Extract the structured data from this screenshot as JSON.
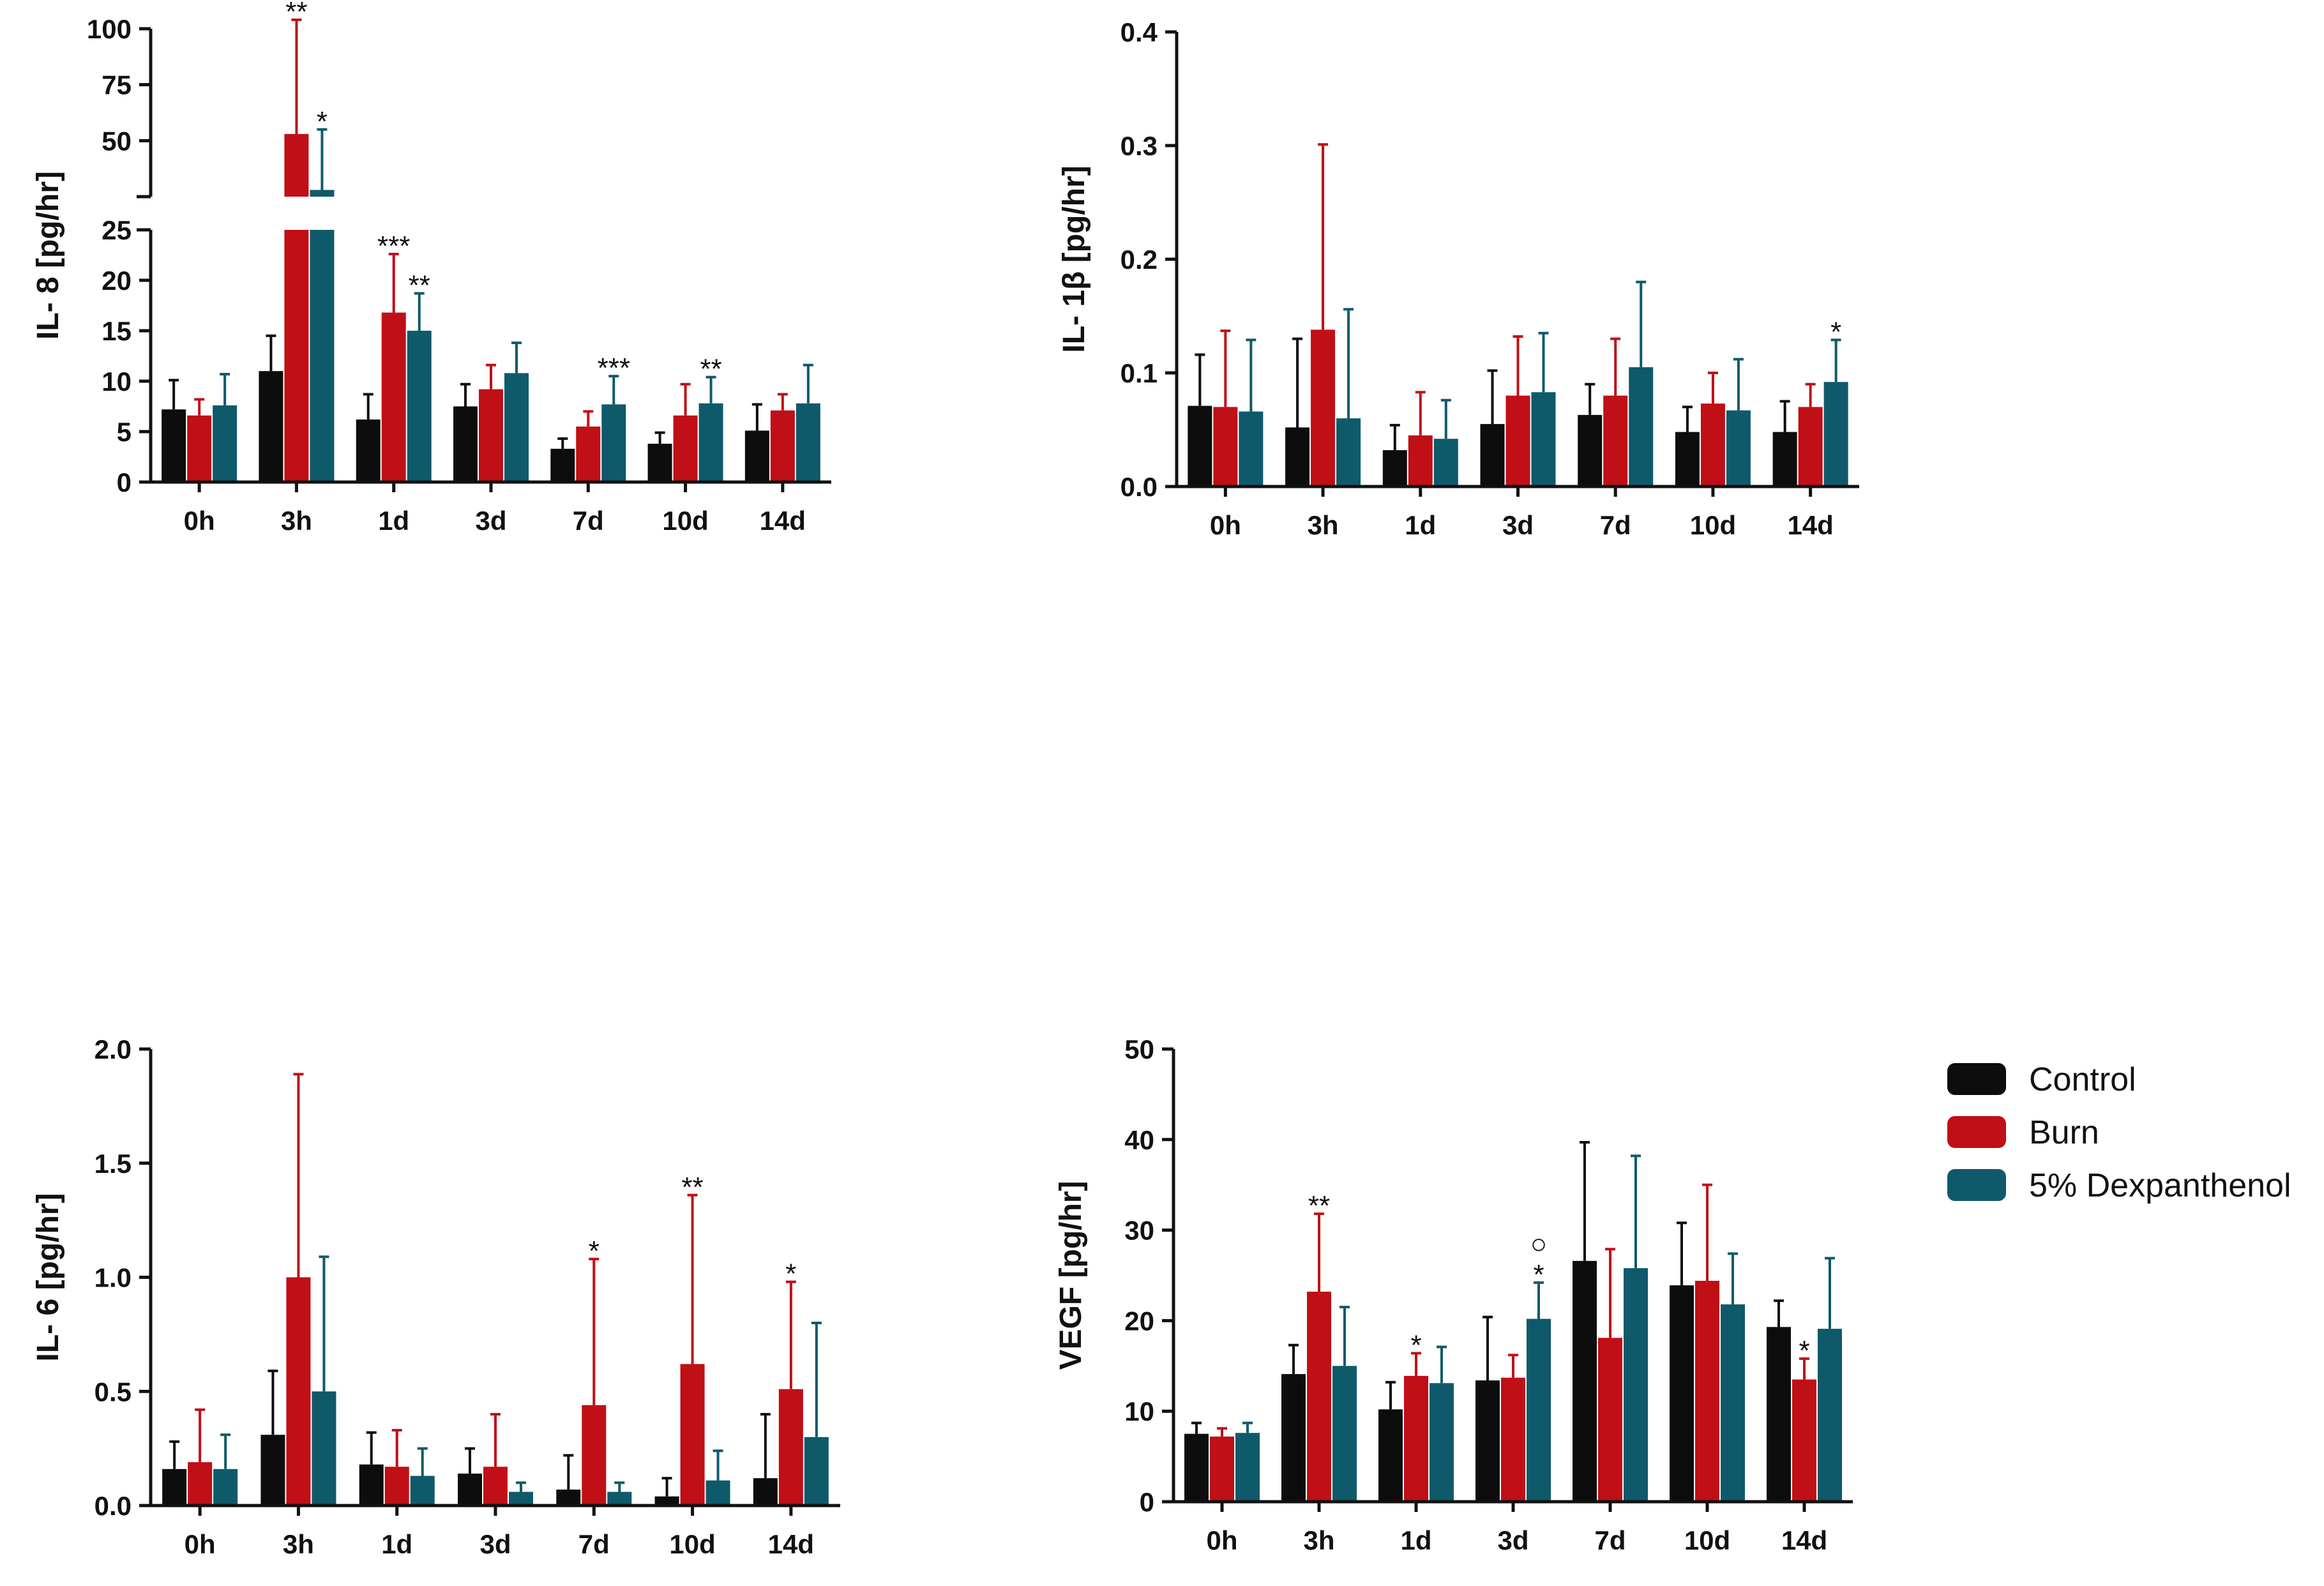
{
  "colors": {
    "Control": "#0d0d0d",
    "Burn": "#c00f16",
    "5% Dexpanthenol": "#0e5a6b"
  },
  "legend": {
    "items": [
      {
        "name": "Control",
        "color": "#0d0d0d"
      },
      {
        "name": "Burn",
        "color": "#c00f16"
      },
      {
        "name": "5% Dexpanthenol",
        "color": "#0e5a6b"
      }
    ]
  },
  "chart_data": [
    {
      "id": "il8",
      "type": "bar",
      "ylabel": "IL- 8 [pg/hr]",
      "categories": [
        "0h",
        "3h",
        "1d",
        "3d",
        "7d",
        "10d",
        "14d"
      ],
      "axis_break": {
        "lower_range": [
          0,
          25
        ],
        "upper_range": [
          25,
          100
        ]
      },
      "ylim": [
        0,
        100
      ],
      "yticks": [
        0,
        5,
        10,
        15,
        20,
        25,
        50,
        75,
        100
      ],
      "series": [
        {
          "name": "Control",
          "values": [
            7.2,
            11,
            6.2,
            7.5,
            3.3,
            3.8,
            5.1
          ],
          "errors": [
            2.9,
            3.5,
            2.5,
            2.2,
            1,
            1.1,
            2.6
          ]
        },
        {
          "name": "Burn",
          "values": [
            6.6,
            53,
            16.8,
            9.2,
            5.5,
            6.6,
            7.1
          ],
          "errors": [
            1.6,
            51,
            5.8,
            2.4,
            1.5,
            3.1,
            1.6
          ]
        },
        {
          "name": "5% Dexpanthenol",
          "values": [
            7.6,
            28,
            15,
            10.8,
            7.7,
            7.8,
            7.8
          ],
          "errors": [
            3.1,
            27,
            3.7,
            3,
            2.8,
            2.6,
            3.8
          ]
        }
      ],
      "annotations": [
        {
          "category": "3h",
          "series": "Burn",
          "text": "**"
        },
        {
          "category": "3h",
          "series": "5% Dexpanthenol",
          "text": "*"
        },
        {
          "category": "1d",
          "series": "Burn",
          "text": "***"
        },
        {
          "category": "1d",
          "series": "5% Dexpanthenol",
          "text": "**"
        },
        {
          "category": "7d",
          "series": "5% Dexpanthenol",
          "text": "***"
        },
        {
          "category": "10d",
          "series": "5% Dexpanthenol",
          "text": "**"
        }
      ]
    },
    {
      "id": "il1b",
      "type": "bar",
      "ylabel": "IL- 1β [pg/hr]",
      "categories": [
        "0h",
        "3h",
        "1d",
        "3d",
        "7d",
        "10d",
        "14d"
      ],
      "ylim": [
        0,
        0.4
      ],
      "yticks": [
        0.0,
        0.1,
        0.2,
        0.3,
        0.4
      ],
      "series": [
        {
          "name": "Control",
          "values": [
            0.071,
            0.052,
            0.032,
            0.055,
            0.063,
            0.048,
            0.048
          ],
          "errors": [
            0.045,
            0.078,
            0.022,
            0.047,
            0.027,
            0.022,
            0.027
          ]
        },
        {
          "name": "Burn",
          "values": [
            0.07,
            0.138,
            0.045,
            0.08,
            0.08,
            0.073,
            0.07
          ],
          "errors": [
            0.067,
            0.163,
            0.038,
            0.052,
            0.05,
            0.027,
            0.02
          ]
        },
        {
          "name": "5% Dexpanthenol",
          "values": [
            0.066,
            0.06,
            0.042,
            0.083,
            0.105,
            0.067,
            0.092
          ],
          "errors": [
            0.063,
            0.096,
            0.034,
            0.052,
            0.075,
            0.045,
            0.037
          ]
        }
      ],
      "annotations": [
        {
          "category": "14d",
          "series": "5% Dexpanthenol",
          "text": "*"
        }
      ]
    },
    {
      "id": "il6",
      "type": "bar",
      "ylabel": "IL- 6 [pg/hr]",
      "categories": [
        "0h",
        "3h",
        "1d",
        "3d",
        "7d",
        "10d",
        "14d"
      ],
      "ylim": [
        0,
        2.0
      ],
      "yticks": [
        0.0,
        0.5,
        1.0,
        1.5,
        2.0
      ],
      "series": [
        {
          "name": "Control",
          "values": [
            0.16,
            0.31,
            0.18,
            0.14,
            0.07,
            0.04,
            0.12
          ],
          "errors": [
            0.12,
            0.28,
            0.14,
            0.11,
            0.15,
            0.08,
            0.28
          ]
        },
        {
          "name": "Burn",
          "values": [
            0.19,
            1.0,
            0.17,
            0.17,
            0.44,
            0.62,
            0.51
          ],
          "errors": [
            0.23,
            0.89,
            0.16,
            0.23,
            0.64,
            0.74,
            0.47
          ]
        },
        {
          "name": "5% Dexpanthenol",
          "values": [
            0.16,
            0.5,
            0.13,
            0.06,
            0.06,
            0.11,
            0.3
          ],
          "errors": [
            0.15,
            0.59,
            0.12,
            0.04,
            0.04,
            0.13,
            0.5
          ]
        }
      ],
      "annotations": [
        {
          "category": "7d",
          "series": "Burn",
          "text": "*"
        },
        {
          "category": "10d",
          "series": "Burn",
          "text": "**"
        },
        {
          "category": "14d",
          "series": "Burn",
          "text": "*"
        }
      ]
    },
    {
      "id": "vegf",
      "type": "bar",
      "ylabel": "VEGF [pg/hr]",
      "categories": [
        "0h",
        "3h",
        "1d",
        "3d",
        "7d",
        "10d",
        "14d"
      ],
      "ylim": [
        0,
        50
      ],
      "yticks": [
        0,
        10,
        20,
        30,
        40,
        50
      ],
      "series": [
        {
          "name": "Control",
          "values": [
            7.5,
            14.1,
            10.2,
            13.4,
            26.6,
            23.9,
            19.3
          ],
          "errors": [
            1.2,
            3.2,
            3,
            7,
            13.1,
            6.9,
            2.9
          ]
        },
        {
          "name": "Burn",
          "values": [
            7.2,
            23.2,
            13.9,
            13.7,
            18.1,
            24.4,
            13.5
          ],
          "errors": [
            0.9,
            8.6,
            2.5,
            2.5,
            9.8,
            10.6,
            2.3
          ]
        },
        {
          "name": "5% Dexpanthenol",
          "values": [
            7.6,
            15,
            13.1,
            20.2,
            25.8,
            21.8,
            19.1
          ],
          "errors": [
            1.1,
            6.5,
            4,
            4,
            12.4,
            5.6,
            7.8
          ]
        }
      ],
      "annotations": [
        {
          "category": "3h",
          "series": "Burn",
          "text": "**"
        },
        {
          "category": "1d",
          "series": "Burn",
          "text": "*"
        },
        {
          "category": "3d",
          "series": "5% Dexpanthenol",
          "text": "*"
        },
        {
          "category": "3d",
          "series": "5% Dexpanthenol",
          "text": "○"
        },
        {
          "category": "14d",
          "series": "Burn",
          "text": "*"
        }
      ]
    }
  ]
}
